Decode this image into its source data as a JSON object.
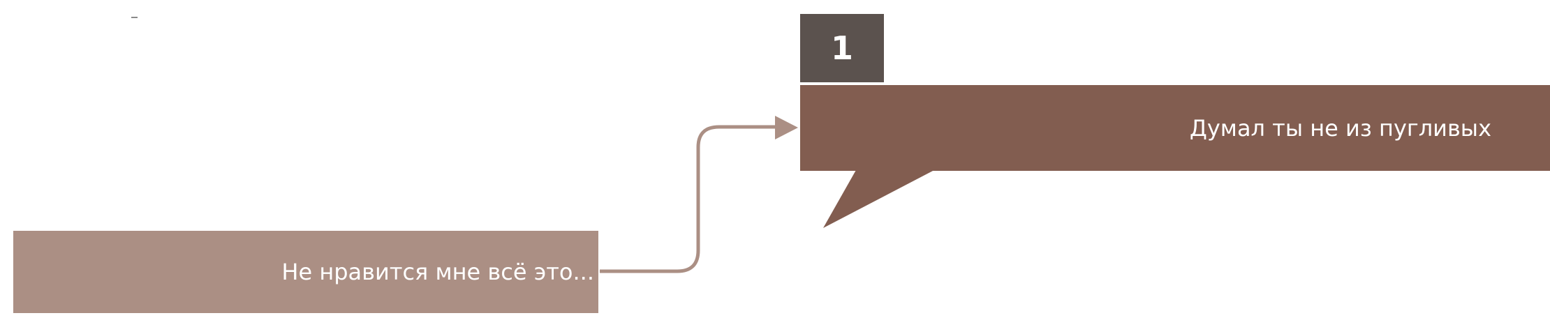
{
  "colors": {
    "badge": "#5b524e",
    "speech_box": "#825d50",
    "source_box": "#ab8f84",
    "connector": "#ab8f84",
    "tick": "#8a8a8a"
  },
  "step": {
    "number": "1"
  },
  "source_box": {
    "text": "Не нравится мне всё это..."
  },
  "speech_box": {
    "text": "Думал ты не из пугливых"
  },
  "connector": {
    "arrow_direction": "right",
    "from": "source_box",
    "to": "speech_box"
  }
}
